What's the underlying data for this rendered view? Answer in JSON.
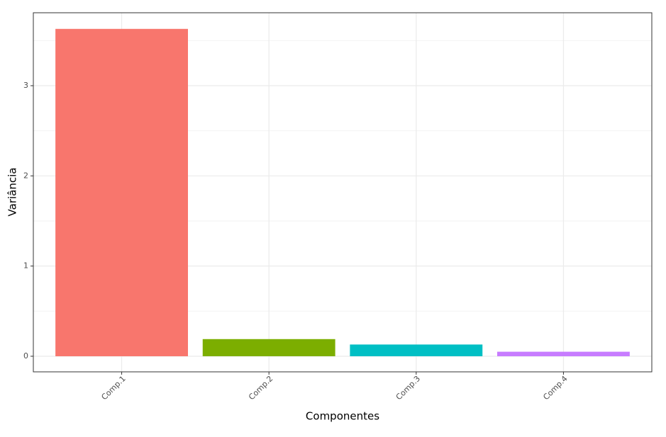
{
  "chart_data": {
    "type": "bar",
    "x_label": "Componentes",
    "y_label": "Variância",
    "categories": [
      "Comp.1",
      "Comp.2",
      "Comp.3",
      "Comp.4"
    ],
    "values": [
      3.63,
      0.19,
      0.13,
      0.05
    ],
    "colors": [
      "#F8766D",
      "#7CAE00",
      "#00BFC4",
      "#C77CFF"
    ],
    "ylim": [
      -0.173,
      3.809
    ],
    "yticks": [
      0,
      1,
      2,
      3
    ],
    "grid": true
  }
}
